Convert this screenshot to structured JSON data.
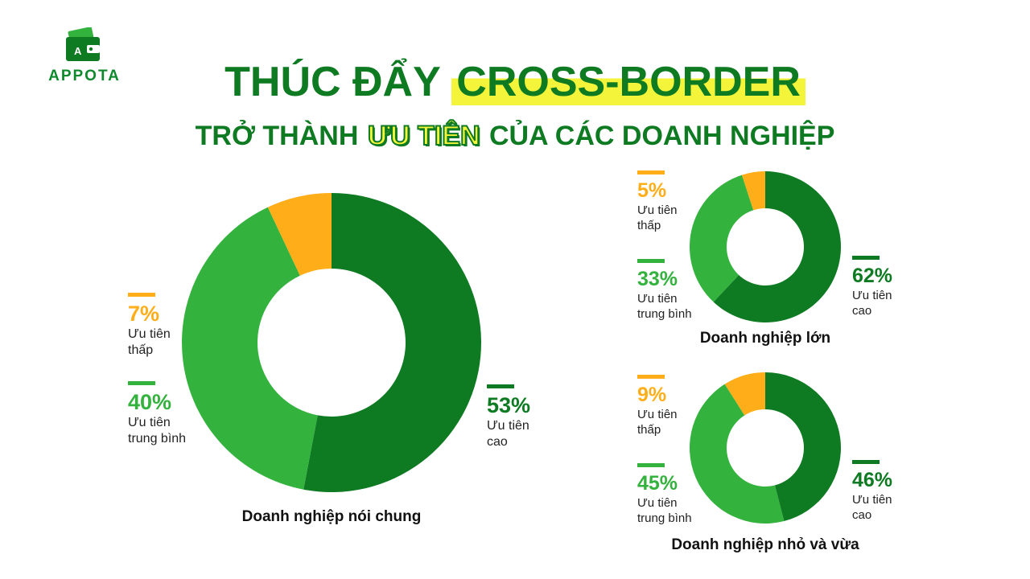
{
  "brand": {
    "logo_text": "APPOTA",
    "colors": {
      "green_dark": "#0e7a22",
      "green_light": "#33b23d",
      "orange": "#ffae1a",
      "highlight": "#f4f53a"
    }
  },
  "title": {
    "line1_prefix": "THÚC ĐẨY",
    "line1_highlight": "CROSS-BORDER",
    "line2_prefix": "TRỞ THÀNH",
    "line2_highlight": "ƯU TIÊN",
    "line2_suffix": "CỦA CÁC DOANH NGHIỆP"
  },
  "chart_data": [
    {
      "type": "pie",
      "donut": true,
      "title": "Doanh nghiệp nói chung",
      "slices": [
        {
          "value": 53,
          "pct_label": "53%",
          "label": "Ưu tiên cao",
          "line1": "Ưu tiên",
          "line2": "cao",
          "color": "#0e7a22"
        },
        {
          "value": 40,
          "pct_label": "40%",
          "label": "Ưu tiên trung bình",
          "line1": "Ưu tiên",
          "line2": "trung bình",
          "color": "#33b23d"
        },
        {
          "value": 7,
          "pct_label": "7%",
          "label": "Ưu tiên thấp",
          "line1": "Ưu tiên",
          "line2": "thấp",
          "color": "#ffae1a"
        }
      ]
    },
    {
      "type": "pie",
      "donut": true,
      "title": "Doanh nghiệp lớn",
      "slices": [
        {
          "value": 62,
          "pct_label": "62%",
          "label": "Ưu tiên cao",
          "line1": "Ưu tiên",
          "line2": "cao",
          "color": "#0e7a22"
        },
        {
          "value": 33,
          "pct_label": "33%",
          "label": "Ưu tiên trung bình",
          "line1": "Ưu tiên",
          "line2": "trung bình",
          "color": "#33b23d"
        },
        {
          "value": 5,
          "pct_label": "5%",
          "label": "Ưu tiên thấp",
          "line1": "Ưu tiên",
          "line2": "thấp",
          "color": "#ffae1a"
        }
      ]
    },
    {
      "type": "pie",
      "donut": true,
      "title": "Doanh nghiệp nhỏ và vừa",
      "slices": [
        {
          "value": 46,
          "pct_label": "46%",
          "label": "Ưu tiên cao",
          "line1": "Ưu tiên",
          "line2": "cao",
          "color": "#0e7a22"
        },
        {
          "value": 45,
          "pct_label": "45%",
          "label": "Ưu tiên trung bình",
          "line1": "Ưu tiên",
          "line2": "trung bình",
          "color": "#33b23d"
        },
        {
          "value": 9,
          "pct_label": "9%",
          "label": "Ưu tiên thấp",
          "line1": "Ưu tiên",
          "line2": "thấp",
          "color": "#ffae1a"
        }
      ]
    }
  ]
}
